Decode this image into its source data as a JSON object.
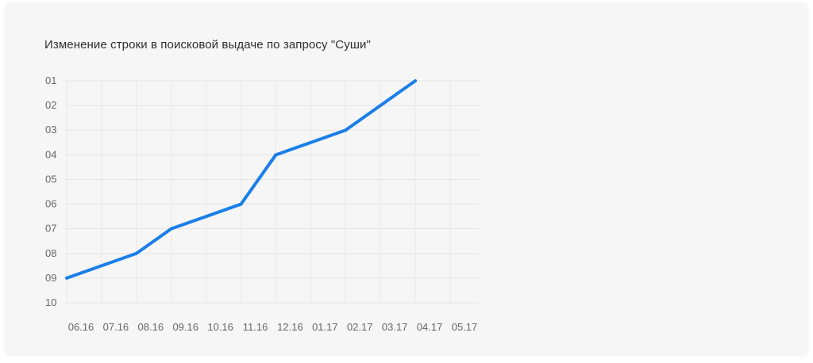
{
  "chart_data": {
    "type": "line",
    "title": "Изменение строки в поисковой выдаче по запросу \"Суши\"",
    "xlabel": "",
    "ylabel": "",
    "categories": [
      "06.16",
      "07.16",
      "08.16",
      "09.16",
      "10.16",
      "11.16",
      "12.16",
      "01.17",
      "02.17",
      "03.17",
      "04.17",
      "05.17"
    ],
    "y_tick_labels": [
      "01",
      "02",
      "03",
      "04",
      "05",
      "06",
      "07",
      "08",
      "09",
      "10"
    ],
    "ylim": [
      1,
      10
    ],
    "y_inverted": true,
    "grid": true,
    "legend": "none",
    "series": [
      {
        "name": "",
        "color": "#1a7fe8",
        "x": [
          "06.16",
          "08.16",
          "09.16",
          "11.16",
          "12.16",
          "02.17",
          "04.17"
        ],
        "values": [
          9,
          8,
          7,
          6,
          4,
          3,
          1
        ]
      }
    ]
  }
}
